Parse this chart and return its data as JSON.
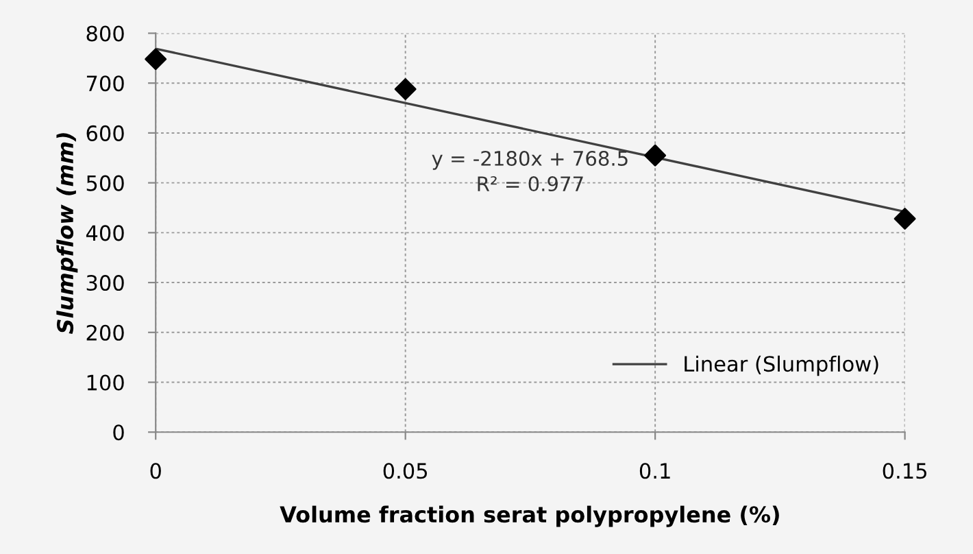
{
  "chart_data": {
    "type": "scatter",
    "xlabel": "Volume fraction serat polypropylene (%)",
    "ylabel": "Slumpflow (mm)",
    "series": [
      {
        "color": "#000000",
        "x": [
          0,
          0.05,
          0.1,
          0.15
        ],
        "values": [
          748,
          688,
          555,
          428
        ],
        "marker": "diamond"
      },
      {
        "type": "line",
        "name": "Linear (Slumpflow)",
        "color": "#404040",
        "x": [
          0,
          0.15
        ],
        "values": [
          769,
          442
        ],
        "line_style": "solid"
      }
    ],
    "annotations": [
      "y = -2180x + 768.5\nR² = 0.977"
    ],
    "xlim": [
      0,
      0.15
    ],
    "xticks": [
      0,
      0.05,
      0.1,
      0.15
    ],
    "ylim": [
      0,
      800
    ],
    "yticks": [
      0,
      100,
      200,
      300,
      400,
      500,
      600,
      700,
      800
    ],
    "grid": true,
    "legend": "bottom right"
  }
}
